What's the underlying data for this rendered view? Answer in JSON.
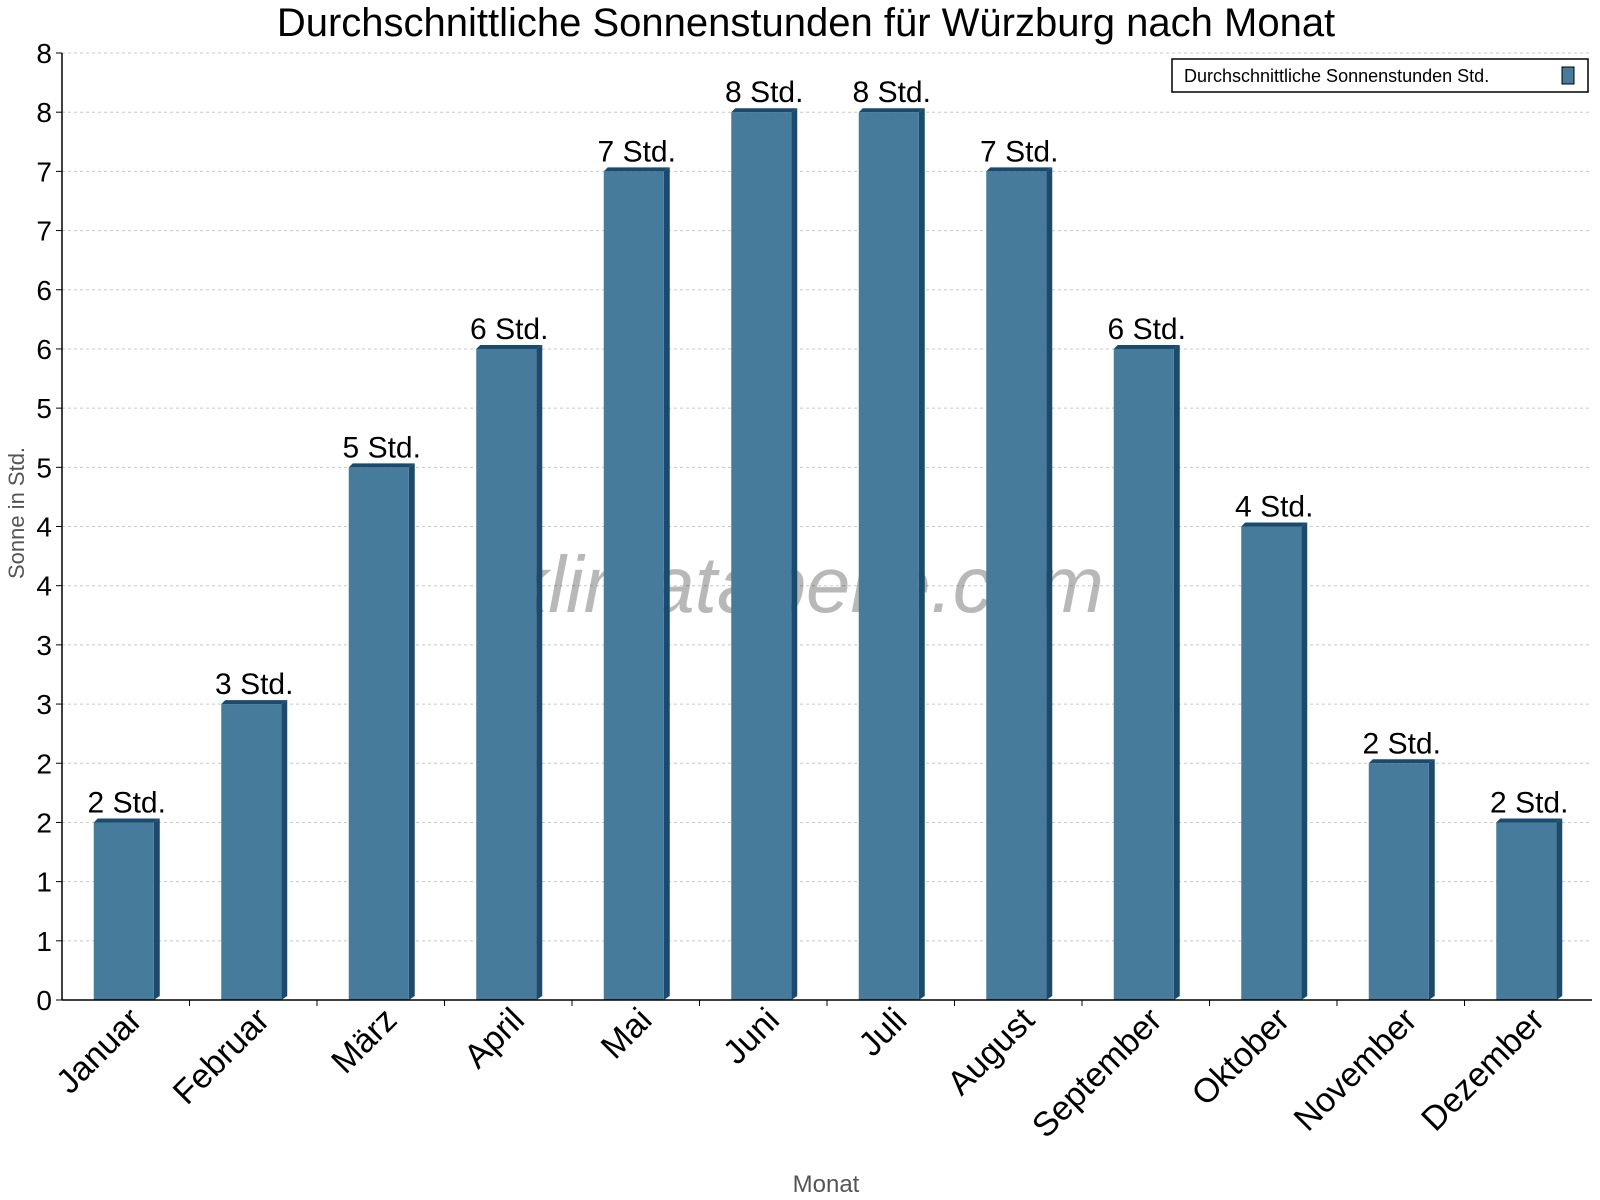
{
  "chart_data": {
    "type": "bar",
    "title": "Durchschnittliche Sonnenstunden für Würzburg nach Monat",
    "xlabel": "Monat",
    "ylabel": "Sonne in Std.",
    "ylim": [
      0,
      8
    ],
    "y_ticks": [
      0,
      0.5,
      1,
      1.5,
      2,
      2.5,
      3,
      3.5,
      4,
      4.5,
      5,
      5.5,
      6,
      6.5,
      7,
      7.5,
      8
    ],
    "y_tick_labels": [
      "0",
      "1",
      "1",
      "2",
      "2",
      "3",
      "3",
      "4",
      "4",
      "5",
      "5",
      "6",
      "6",
      "7",
      "7",
      "8",
      "8"
    ],
    "grid": true,
    "legend": {
      "position": "top-right",
      "entries": [
        "Durchschnittliche Sonnenstunden Std."
      ]
    },
    "categories": [
      "Januar",
      "Februar",
      "März",
      "April",
      "Mai",
      "Juni",
      "Juli",
      "August",
      "September",
      "Oktober",
      "November",
      "Dezember"
    ],
    "values": [
      1.5,
      2.5,
      4.5,
      5.5,
      7,
      7.5,
      7.5,
      7,
      5.5,
      4,
      2,
      1.5
    ],
    "data_labels": [
      "2 Std.",
      "3 Std.",
      "5 Std.",
      "6 Std.",
      "7 Std.",
      "8 Std.",
      "8 Std.",
      "7 Std.",
      "6 Std.",
      "4 Std.",
      "2 Std.",
      "2 Std."
    ],
    "watermark": "klimatabelle.com",
    "colors": {
      "bar": "#467b9c",
      "bar_side": "#1a4a6d"
    }
  }
}
